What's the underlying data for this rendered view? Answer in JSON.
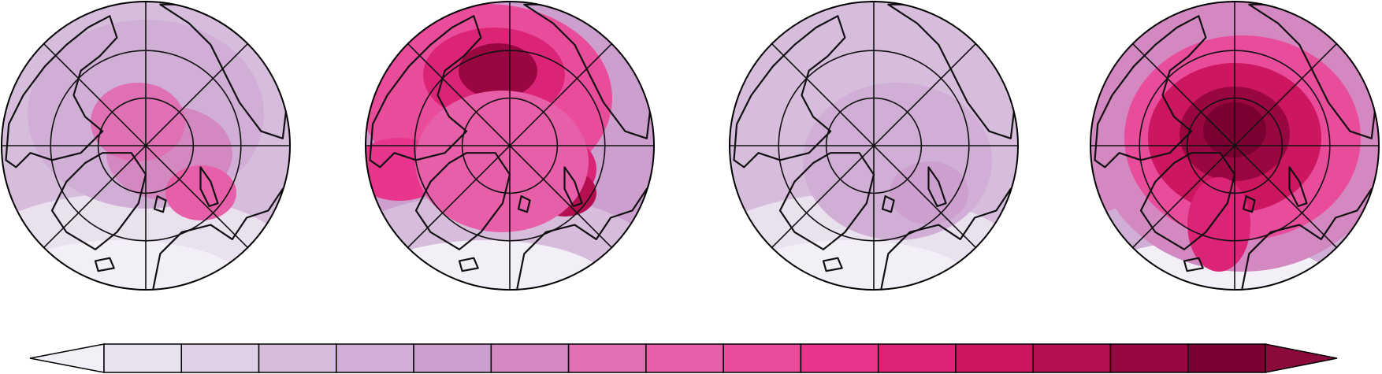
{
  "figure": {
    "panels": [
      {
        "id": "panel-1",
        "peak_level": 8,
        "pattern": "moderate"
      },
      {
        "id": "panel-2",
        "peak_level": 14,
        "pattern": "pacific-strong"
      },
      {
        "id": "panel-3",
        "peak_level": 6,
        "pattern": "weak"
      },
      {
        "id": "panel-4",
        "peak_level": 15,
        "pattern": "central-strong"
      }
    ],
    "colorbar": {
      "extend": "both",
      "colors": [
        "#f3eff6",
        "#e9e1ee",
        "#e0d1e6",
        "#d6bddc",
        "#d0aed6",
        "#cc9fcf",
        "#d488c2",
        "#e070b4",
        "#e65fa8",
        "#e94c9b",
        "#e8368d",
        "#dc2477",
        "#cc1660",
        "#b40f50",
        "#9a0641",
        "#7a0032",
        "#8a0a3c"
      ]
    }
  }
}
